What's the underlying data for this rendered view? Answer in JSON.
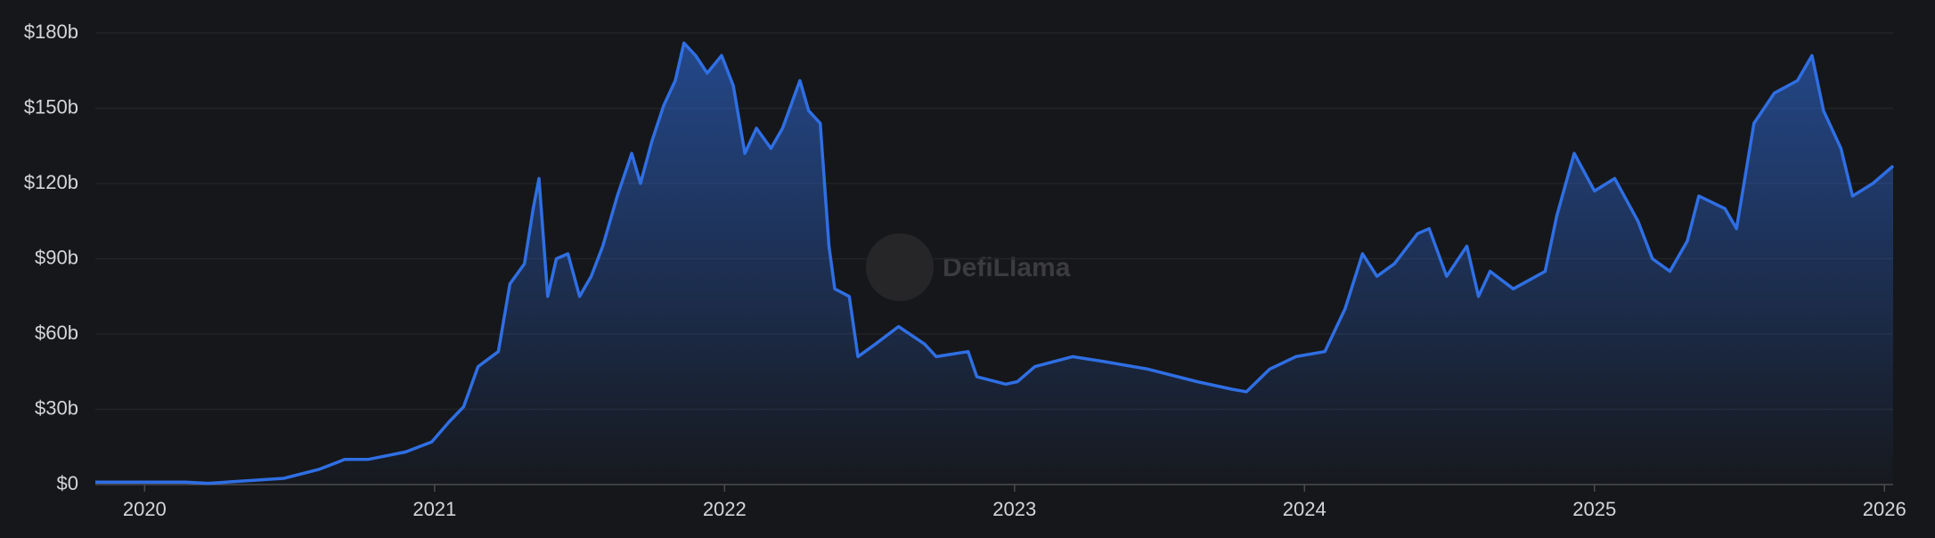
{
  "chart_data": {
    "type": "area",
    "watermark": "DefiLlama",
    "x": [
      2019.83,
      2020.14,
      2020.22,
      2020.48,
      2020.6,
      2020.69,
      2020.77,
      2020.9,
      2020.99,
      2021.05,
      2021.1,
      2021.15,
      2021.22,
      2021.26,
      2021.31,
      2021.34,
      2021.36,
      2021.39,
      2021.42,
      2021.46,
      2021.5,
      2021.54,
      2021.58,
      2021.63,
      2021.68,
      2021.71,
      2021.75,
      2021.79,
      2021.83,
      2021.86,
      2021.9,
      2021.94,
      2021.99,
      2022.03,
      2022.07,
      2022.11,
      2022.16,
      2022.2,
      2022.26,
      2022.29,
      2022.33,
      2022.36,
      2022.38,
      2022.43,
      2022.46,
      2022.52,
      2022.6,
      2022.69,
      2022.73,
      2022.84,
      2022.87,
      2022.97,
      2023.01,
      2023.07,
      2023.2,
      2023.31,
      2023.46,
      2023.63,
      2023.75,
      2023.8,
      2023.88,
      2023.97,
      2024.07,
      2024.14,
      2024.2,
      2024.25,
      2024.31,
      2024.39,
      2024.43,
      2024.49,
      2024.56,
      2024.6,
      2024.64,
      2024.72,
      2024.83,
      2024.87,
      2024.93,
      2025.0,
      2025.07,
      2025.15,
      2025.2,
      2025.26,
      2025.32,
      2025.36,
      2025.45,
      2025.49,
      2025.55,
      2025.62,
      2025.7,
      2025.75,
      2025.79,
      2025.85,
      2025.89,
      2025.96,
      2026.03
    ],
    "series": [
      {
        "color": "#2f6fe4",
        "values": [
          1,
          1,
          0.5,
          2.5,
          6,
          10,
          10,
          13,
          17,
          25,
          31,
          47,
          53,
          80,
          88,
          110,
          122,
          75,
          90,
          92,
          75,
          83,
          95,
          115,
          132,
          120,
          137,
          151,
          161,
          176,
          171,
          164,
          171,
          159,
          132,
          142,
          134,
          142,
          161,
          149,
          144,
          95,
          78,
          75,
          51,
          56,
          63,
          56,
          51,
          53,
          43,
          40,
          41,
          47,
          51,
          49,
          46,
          41,
          38,
          37,
          46,
          51,
          53,
          70,
          92,
          83,
          88,
          100,
          102,
          83,
          95,
          75,
          85,
          78,
          85,
          107,
          132,
          117,
          122,
          105,
          90,
          85,
          97,
          115,
          110,
          102,
          144,
          156,
          161,
          171,
          149,
          134,
          115,
          120,
          127
        ]
      }
    ],
    "xlim": [
      2019.83,
      2026.03
    ],
    "ylim": [
      0,
      180
    ],
    "xticks": [
      2020,
      2021,
      2022,
      2023,
      2024,
      2025,
      2026
    ],
    "yticks": [
      {
        "value": 0,
        "label": "$0"
      },
      {
        "value": 30,
        "label": "$30b"
      },
      {
        "value": 60,
        "label": "$60b"
      },
      {
        "value": 90,
        "label": "$90b"
      },
      {
        "value": 120,
        "label": "$120b"
      },
      {
        "value": 150,
        "label": "$150b"
      },
      {
        "value": 180,
        "label": "$180b"
      }
    ],
    "grid": true
  }
}
